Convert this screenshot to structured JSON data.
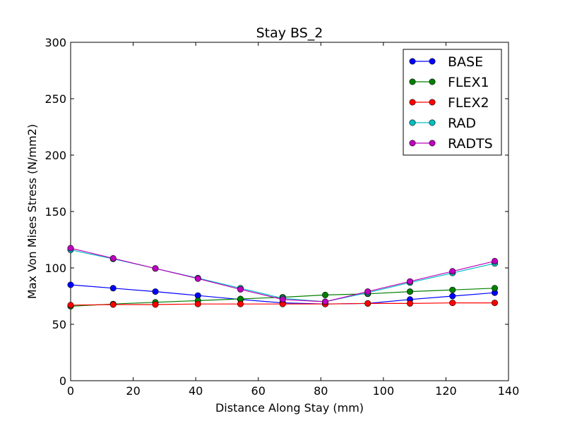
{
  "chart_data": {
    "type": "line",
    "title": "Stay BS_2",
    "xlabel": "Distance Along Stay (mm)",
    "ylabel": "Max Von Mises Stress (N/mm2)",
    "xlim": [
      0,
      140
    ],
    "ylim": [
      0,
      300
    ],
    "xticks": [
      "0",
      "20",
      "40",
      "60",
      "80",
      "100",
      "120",
      "140"
    ],
    "yticks": [
      "0",
      "50",
      "100",
      "150",
      "200",
      "250",
      "300"
    ],
    "grid": false,
    "legend_position": "top-right",
    "x": [
      0,
      13.6,
      27.1,
      40.7,
      54.3,
      67.8,
      81.4,
      95.0,
      108.5,
      122.1,
      135.6
    ],
    "series": [
      {
        "name": "BASE",
        "color": "#0000ff",
        "values": [
          85,
          82,
          79,
          75.5,
          72,
          69,
          68,
          68.5,
          72,
          75,
          78
        ]
      },
      {
        "name": "FLEX1",
        "color": "#008000",
        "values": [
          66,
          68,
          69.5,
          71,
          72.5,
          74,
          76,
          77,
          79,
          80.5,
          82
        ]
      },
      {
        "name": "FLEX2",
        "color": "#ff0000",
        "values": [
          67,
          67.5,
          67.5,
          68,
          68,
          68,
          68,
          68.5,
          68.5,
          69,
          69
        ]
      },
      {
        "name": "RAD",
        "color": "#00bfbf",
        "values": [
          116,
          108,
          99.5,
          91,
          82,
          73,
          70,
          78,
          87,
          95.5,
          104
        ]
      },
      {
        "name": "RADTS",
        "color": "#bf00bf",
        "values": [
          117.5,
          108.5,
          99.5,
          90.5,
          81,
          72,
          70,
          79,
          88,
          97,
          106
        ]
      }
    ]
  }
}
